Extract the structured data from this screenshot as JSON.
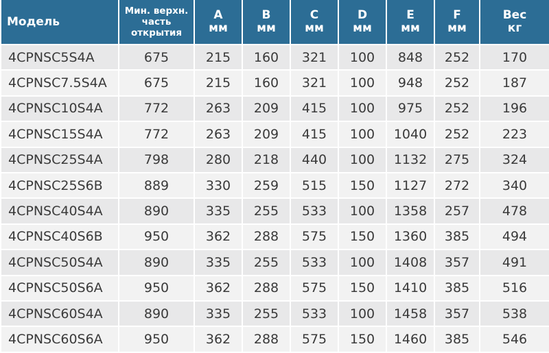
{
  "table": {
    "header": [
      [
        "Модель"
      ],
      [
        "Мин. верхн.",
        "часть",
        "открытия"
      ],
      [
        "A",
        "мм"
      ],
      [
        "B",
        "мм"
      ],
      [
        "C",
        "мм"
      ],
      [
        "D",
        "мм"
      ],
      [
        "E",
        "мм"
      ],
      [
        "F",
        "мм"
      ],
      [
        "Вес",
        "кг"
      ]
    ],
    "rows": [
      [
        "4CPNSC5S4A",
        675,
        215,
        160,
        321,
        100,
        848,
        252,
        170
      ],
      [
        "4CPNSC7.5S4A",
        675,
        215,
        160,
        321,
        100,
        948,
        252,
        187
      ],
      [
        "4CPNSC10S4A",
        772,
        263,
        209,
        415,
        100,
        975,
        252,
        196
      ],
      [
        "4CPNSC15S4A",
        772,
        263,
        209,
        415,
        100,
        1040,
        252,
        223
      ],
      [
        "4CPNSC25S4A",
        798,
        280,
        218,
        440,
        100,
        1132,
        275,
        324
      ],
      [
        "4CPNSC25S6B",
        889,
        330,
        259,
        515,
        150,
        1127,
        272,
        340
      ],
      [
        "4CPNSC40S4A",
        890,
        335,
        255,
        533,
        100,
        1358,
        257,
        478
      ],
      [
        "4CPNSC40S6B",
        950,
        362,
        288,
        575,
        150,
        1360,
        385,
        494
      ],
      [
        "4CPNSC50S4A",
        890,
        335,
        255,
        533,
        100,
        1408,
        357,
        491
      ],
      [
        "4CPNSC50S6A",
        950,
        362,
        288,
        575,
        150,
        1410,
        385,
        516
      ],
      [
        "4CPNSC60S4A",
        890,
        335,
        255,
        533,
        100,
        1458,
        357,
        538
      ],
      [
        "4CPNSC60S6A",
        950,
        362,
        288,
        575,
        150,
        1460,
        385,
        546
      ]
    ]
  }
}
